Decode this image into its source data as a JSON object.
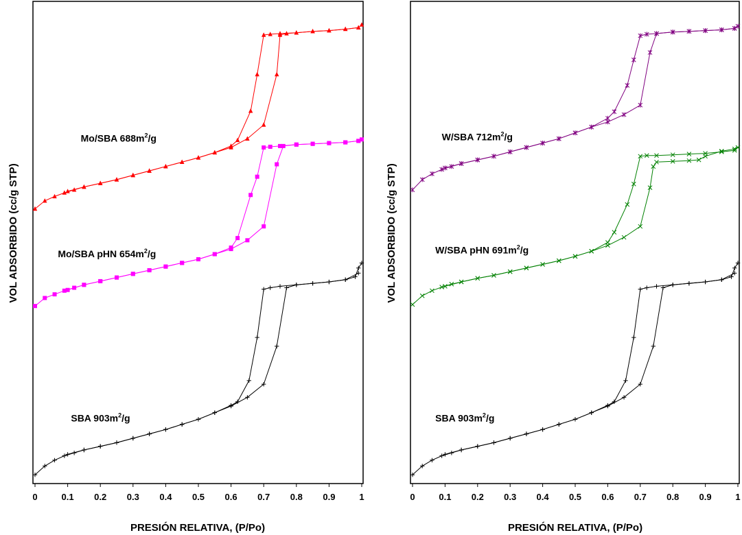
{
  "chart_data": [
    {
      "type": "line",
      "xlabel": "PRESIÓN RELATIVA, (P/Po)",
      "ylabel": "VOL ADSORBIDO (cc/g STP)",
      "xlim": [
        0,
        1
      ],
      "x_ticks": [
        "0",
        "0.1",
        "0.2",
        "0.3",
        "0.4",
        "0.5",
        "0.6",
        "0.7",
        "0.8",
        "0.9",
        "1"
      ],
      "ylim": [
        0,
        660
      ],
      "y_ticks_shown": false,
      "grid": false,
      "legend": "none",
      "annotations": [
        {
          "name": "Mo/SBA 688",
          "sup": "2",
          "suffix": "/g",
          "unit": "m",
          "anchor_x": 0.14,
          "anchor_y": 468
        },
        {
          "name": "Mo/SBA pHN 654",
          "sup": "2",
          "suffix": "/g",
          "unit": "m",
          "anchor_x": 0.07,
          "anchor_y": 310
        },
        {
          "name": "SBA 903",
          "sup": "2",
          "suffix": "/g",
          "unit": "m",
          "anchor_x": 0.11,
          "anchor_y": 85
        }
      ],
      "series": [
        {
          "color": "#ff0000",
          "marker": "triangle",
          "adsorption": {
            "x": [
              0.0,
              0.03,
              0.06,
              0.09,
              0.12,
              0.15,
              0.2,
              0.25,
              0.3,
              0.35,
              0.4,
              0.45,
              0.5,
              0.55,
              0.6,
              0.65,
              0.7,
              0.74,
              0.75,
              0.77,
              0.8,
              0.85,
              0.9,
              0.95,
              0.99,
              1.0
            ],
            "y": [
              376,
              387,
              393,
              398,
              402,
              406,
              411,
              416,
              422,
              428,
              434,
              440,
              446,
              453,
              460,
              472,
              491,
              560,
              614,
              616,
              617,
              619,
              620,
              622,
              624,
              628
            ]
          },
          "desorption": {
            "x": [
              0.99,
              0.95,
              0.9,
              0.85,
              0.8,
              0.75,
              0.72,
              0.7,
              0.68,
              0.66,
              0.62,
              0.6,
              0.55,
              0.5,
              0.45,
              0.4,
              0.35,
              0.3,
              0.25,
              0.2,
              0.15,
              0.1
            ],
            "y": [
              624,
              622,
              620,
              619,
              617,
              616,
              615,
              614,
              560,
              510,
              470,
              462,
              453,
              446,
              440,
              434,
              428,
              422,
              416,
              411,
              406,
              400
            ]
          }
        },
        {
          "color": "#ff00ff",
          "marker": "square",
          "adsorption": {
            "x": [
              0.0,
              0.03,
              0.06,
              0.09,
              0.12,
              0.15,
              0.2,
              0.25,
              0.3,
              0.35,
              0.4,
              0.45,
              0.5,
              0.55,
              0.6,
              0.65,
              0.7,
              0.74,
              0.76,
              0.8,
              0.85,
              0.9,
              0.95,
              0.99,
              1.0
            ],
            "y": [
              243,
              254,
              259,
              264,
              268,
              272,
              277,
              282,
              287,
              292,
              297,
              302,
              307,
              314,
              321,
              333,
              352,
              437,
              462,
              464,
              465,
              466,
              467,
              469,
              471
            ]
          },
          "desorption": {
            "x": [
              0.99,
              0.95,
              0.9,
              0.85,
              0.8,
              0.75,
              0.72,
              0.7,
              0.68,
              0.66,
              0.62,
              0.6,
              0.55,
              0.5,
              0.45,
              0.4,
              0.35,
              0.3,
              0.25,
              0.2,
              0.15,
              0.1
            ],
            "y": [
              469,
              467,
              466,
              465,
              464,
              462,
              461,
              460,
              420,
              395,
              336,
              323,
              314,
              307,
              302,
              297,
              292,
              287,
              282,
              277,
              272,
              265
            ]
          }
        },
        {
          "color": "#000000",
          "marker": "plus",
          "adsorption": {
            "x": [
              0.0,
              0.03,
              0.06,
              0.09,
              0.12,
              0.15,
              0.2,
              0.25,
              0.3,
              0.35,
              0.4,
              0.45,
              0.5,
              0.55,
              0.6,
              0.65,
              0.7,
              0.74,
              0.77,
              0.8,
              0.85,
              0.9,
              0.95,
              0.98,
              0.99,
              1.0
            ],
            "y": [
              12,
              24,
              32,
              38,
              42,
              46,
              51,
              56,
              62,
              68,
              74,
              81,
              88,
              97,
              106,
              118,
              136,
              188,
              268,
              272,
              274,
              276,
              279,
              283,
              295,
              302
            ]
          },
          "desorption": {
            "x": [
              0.99,
              0.95,
              0.9,
              0.85,
              0.8,
              0.75,
              0.72,
              0.7,
              0.68,
              0.655,
              0.62,
              0.6,
              0.55,
              0.5,
              0.45,
              0.4,
              0.35,
              0.3,
              0.25,
              0.2,
              0.15,
              0.1
            ],
            "y": [
              288,
              279,
              276,
              274,
              272,
              270,
              268,
              266,
              200,
              141,
              112,
              107,
              97,
              88,
              81,
              74,
              68,
              62,
              56,
              51,
              46,
              40
            ]
          }
        }
      ]
    },
    {
      "type": "line",
      "xlabel": "PRESIÓN RELATIVA, (P/Po)",
      "ylabel": "VOL ADSORBIDO (cc/g STP)",
      "xlim": [
        0,
        1
      ],
      "x_ticks": [
        "0",
        "0.1",
        "0.2",
        "0.3",
        "0.4",
        "0.5",
        "0.6",
        "0.7",
        "0.8",
        "0.9",
        "1"
      ],
      "ylim": [
        0,
        660
      ],
      "y_ticks_shown": false,
      "grid": false,
      "legend": "none",
      "annotations": [
        {
          "name": "W/SBA 712",
          "sup": "2",
          "suffix": "/g",
          "unit": "m",
          "anchor_x": 0.09,
          "anchor_y": 470
        },
        {
          "name": "W/SBA pHN 691",
          "sup": "2",
          "suffix": "/g",
          "unit": "m",
          "anchor_x": 0.07,
          "anchor_y": 315
        },
        {
          "name": "SBA 903",
          "sup": "2",
          "suffix": "/g",
          "unit": "m",
          "anchor_x": 0.07,
          "anchor_y": 85
        }
      ],
      "series": [
        {
          "color": "#800080",
          "marker": "star",
          "adsorption": {
            "x": [
              0.0,
              0.03,
              0.06,
              0.09,
              0.12,
              0.15,
              0.2,
              0.25,
              0.3,
              0.35,
              0.4,
              0.45,
              0.5,
              0.55,
              0.6,
              0.65,
              0.7,
              0.73,
              0.75,
              0.8,
              0.85,
              0.9,
              0.95,
              0.99,
              1.0
            ],
            "y": [
              402,
              416,
              424,
              430,
              434,
              438,
              443,
              448,
              454,
              460,
              466,
              472,
              480,
              488,
              495,
              505,
              518,
              590,
              616,
              618,
              619,
              620,
              621,
              623,
              626
            ]
          },
          "desorption": {
            "x": [
              0.99,
              0.95,
              0.9,
              0.85,
              0.8,
              0.75,
              0.72,
              0.7,
              0.68,
              0.66,
              0.62,
              0.6,
              0.55,
              0.5,
              0.45,
              0.4,
              0.35,
              0.3,
              0.25,
              0.2,
              0.15,
              0.1
            ],
            "y": [
              623,
              621,
              620,
              619,
              618,
              616,
              615,
              613,
              580,
              545,
              509,
              500,
              488,
              480,
              472,
              466,
              460,
              454,
              448,
              443,
              438,
              432
            ]
          }
        },
        {
          "color": "#008000",
          "marker": "x",
          "adsorption": {
            "x": [
              0.0,
              0.03,
              0.06,
              0.09,
              0.12,
              0.15,
              0.2,
              0.25,
              0.3,
              0.35,
              0.4,
              0.45,
              0.5,
              0.55,
              0.6,
              0.65,
              0.7,
              0.73,
              0.74,
              0.75,
              0.8,
              0.85,
              0.88,
              0.9,
              0.95,
              0.99,
              1.0
            ],
            "y": [
              245,
              257,
              264,
              269,
              273,
              276,
              281,
              285,
              290,
              295,
              300,
              305,
              311,
              318,
              326,
              337,
              352,
              405,
              434,
              440,
              441,
              442,
              443,
              448,
              455,
              458,
              460
            ]
          },
          "desorption": {
            "x": [
              0.99,
              0.95,
              0.9,
              0.85,
              0.8,
              0.75,
              0.72,
              0.7,
              0.68,
              0.66,
              0.62,
              0.6,
              0.55,
              0.5,
              0.45,
              0.4,
              0.35,
              0.3,
              0.25,
              0.2,
              0.15,
              0.1
            ],
            "y": [
              456,
              454,
              452,
              451,
              450,
              449,
              449,
              448,
              410,
              382,
              344,
              330,
              318,
              311,
              305,
              300,
              295,
              290,
              285,
              281,
              276,
              270
            ]
          }
        },
        {
          "color": "#000000",
          "marker": "plus",
          "adsorption": {
            "x": [
              0.0,
              0.03,
              0.06,
              0.09,
              0.12,
              0.15,
              0.2,
              0.25,
              0.3,
              0.35,
              0.4,
              0.45,
              0.5,
              0.55,
              0.6,
              0.65,
              0.7,
              0.74,
              0.77,
              0.8,
              0.85,
              0.9,
              0.95,
              0.98,
              0.99,
              1.0
            ],
            "y": [
              12,
              24,
              32,
              38,
              42,
              46,
              51,
              56,
              62,
              68,
              74,
              81,
              88,
              97,
              106,
              118,
              136,
              188,
              268,
              272,
              274,
              276,
              279,
              283,
              295,
              302
            ]
          },
          "desorption": {
            "x": [
              0.99,
              0.95,
              0.9,
              0.85,
              0.8,
              0.75,
              0.72,
              0.7,
              0.68,
              0.655,
              0.62,
              0.6,
              0.55,
              0.5,
              0.45,
              0.4,
              0.35,
              0.3,
              0.25,
              0.2,
              0.15,
              0.1
            ],
            "y": [
              288,
              279,
              276,
              274,
              272,
              270,
              268,
              266,
              200,
              141,
              112,
              107,
              97,
              88,
              81,
              74,
              68,
              62,
              56,
              51,
              46,
              40
            ]
          }
        }
      ]
    }
  ]
}
